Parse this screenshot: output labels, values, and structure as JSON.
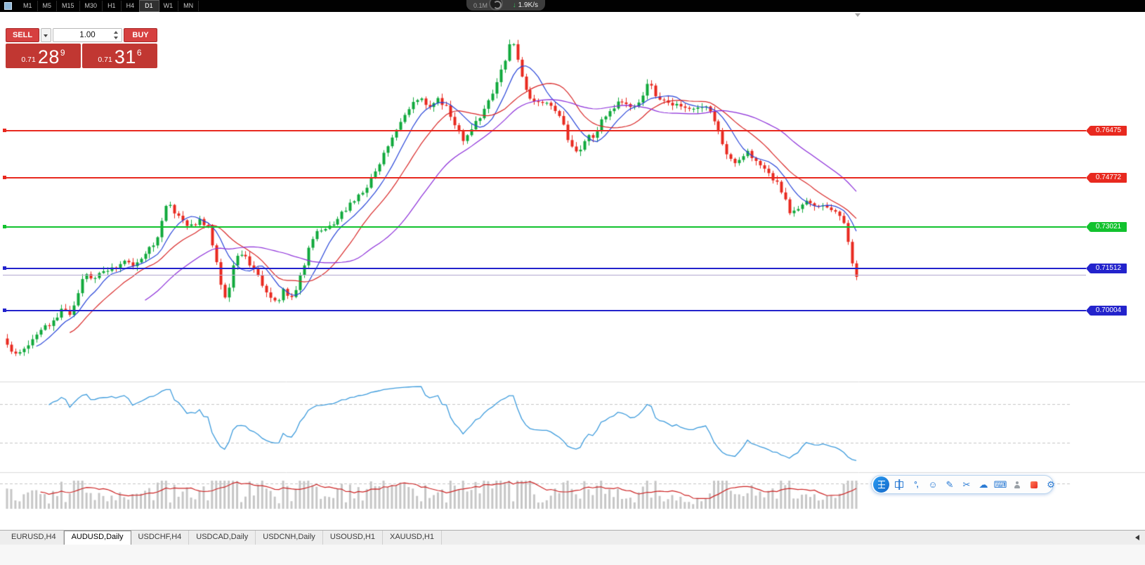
{
  "toolbar": {
    "timeframes": [
      "M1",
      "M5",
      "M15",
      "M30",
      "H1",
      "H4",
      "D1",
      "W1",
      "MN"
    ],
    "selected": "D1"
  },
  "overlay": {
    "upload": "0.1M",
    "arrow": "↓",
    "download": "1.9K/s"
  },
  "trade_panel": {
    "sell_label": "SELL",
    "buy_label": "BUY",
    "volume": "1.00",
    "bid": {
      "small": "0.71",
      "big": "28",
      "sup": "9"
    },
    "ask": {
      "small": "0.71",
      "big": "31",
      "sup": "6"
    }
  },
  "levels": [
    {
      "price": 0.76475,
      "label": "0.76475",
      "color": "#e8291f"
    },
    {
      "price": 0.74772,
      "label": "0.74772",
      "color": "#e8291f"
    },
    {
      "price": 0.73021,
      "label": "0.73021",
      "color": "#12c22e"
    },
    {
      "price": 0.71512,
      "label": "0.71512",
      "color": "#2323cc"
    },
    {
      "price": 0.70004,
      "label": "0.70004",
      "color": "#2323cc"
    }
  ],
  "current_price": {
    "value": 0.71289,
    "line_color": "#b3a8cf"
  },
  "tabs": [
    {
      "label": "EURUSD,H4",
      "active": false
    },
    {
      "label": "AUDUSD,Daily",
      "active": true
    },
    {
      "label": "USDCHF,H4",
      "active": false
    },
    {
      "label": "USDCAD,Daily",
      "active": false
    },
    {
      "label": "USDCNH,Daily",
      "active": false
    },
    {
      "label": "USOUSD,H1",
      "active": false
    },
    {
      "label": "XAUUSD,H1",
      "active": false
    }
  ],
  "ime_toolbar": {
    "icons": [
      {
        "name": "chinese-mode",
        "css": "zhong"
      },
      {
        "name": "punctuation",
        "glyph": "°,",
        "cls": "punct"
      },
      {
        "name": "emoji",
        "glyph": "☺"
      },
      {
        "name": "handwriting-pen",
        "glyph": "✎"
      },
      {
        "name": "screenshot-scissors",
        "glyph": "✂"
      },
      {
        "name": "cloud-sync",
        "glyph": "☁"
      },
      {
        "name": "virtual-keyboard",
        "glyph": "⌨"
      },
      {
        "name": "account-person",
        "css": "person"
      },
      {
        "name": "skin-gift",
        "css": "skin"
      },
      {
        "name": "settings-gear",
        "glyph": "⚙"
      }
    ]
  },
  "chart_data": {
    "type": "candlestick",
    "symbol": "AUDUSD",
    "timeframe": "Daily",
    "candle_count": 204,
    "up_color": "#10a93c",
    "down_color": "#e8291f",
    "price_axis": {
      "visible_levels": [
        0.76475,
        0.74772,
        0.73021,
        0.71512,
        0.70004
      ],
      "approx_range": [
        0.6825,
        0.804
      ]
    },
    "moving_averages": [
      {
        "period": 8,
        "color": "#2643d8"
      },
      {
        "period": 16,
        "color": "#d82626"
      },
      {
        "period": 34,
        "color": "#8a2bd8"
      }
    ],
    "indicators": [
      {
        "pane": "middle",
        "type": "line-oscillator",
        "period": 10,
        "color": "#3d9bdc",
        "grid": "dashed"
      },
      {
        "pane": "bottom",
        "type": "volume-histogram",
        "bar_color": "#c6c6c6",
        "signal_color": "#cc2222"
      }
    ],
    "price_path": [
      [
        0,
        0.69
      ],
      [
        2,
        0.6845
      ],
      [
        5,
        0.687
      ],
      [
        8,
        0.692
      ],
      [
        11,
        0.6955
      ],
      [
        14,
        0.701
      ],
      [
        16,
        0.6985
      ],
      [
        19,
        0.7135
      ],
      [
        21,
        0.7115
      ],
      [
        24,
        0.7155
      ],
      [
        26,
        0.7145
      ],
      [
        29,
        0.7185
      ],
      [
        31,
        0.716
      ],
      [
        34,
        0.722
      ],
      [
        36,
        0.7235
      ],
      [
        39,
        0.739
      ],
      [
        41,
        0.7345
      ],
      [
        44,
        0.731
      ],
      [
        47,
        0.7325
      ],
      [
        49,
        0.729
      ],
      [
        52,
        0.706
      ],
      [
        53,
        0.7035
      ],
      [
        55,
        0.7185
      ],
      [
        57,
        0.7215
      ],
      [
        60,
        0.7135
      ],
      [
        63,
        0.7065
      ],
      [
        65,
        0.7028
      ],
      [
        67,
        0.709
      ],
      [
        68,
        0.7018
      ],
      [
        71,
        0.7135
      ],
      [
        73,
        0.7255
      ],
      [
        75,
        0.7285
      ],
      [
        78,
        0.73
      ],
      [
        80,
        0.735
      ],
      [
        83,
        0.7385
      ],
      [
        85,
        0.742
      ],
      [
        88,
        0.748
      ],
      [
        90,
        0.754
      ],
      [
        92,
        0.7613
      ],
      [
        95,
        0.7687
      ],
      [
        97,
        0.7736
      ],
      [
        99,
        0.7773
      ],
      [
        101,
        0.7736
      ],
      [
        104,
        0.776
      ],
      [
        106,
        0.7724
      ],
      [
        108,
        0.765
      ],
      [
        110,
        0.7613
      ],
      [
        113,
        0.7687
      ],
      [
        115,
        0.7736
      ],
      [
        116,
        0.776
      ],
      [
        118,
        0.7835
      ],
      [
        120,
        0.792
      ],
      [
        121,
        0.7995
      ],
      [
        123,
        0.7873
      ],
      [
        125,
        0.7786
      ],
      [
        127,
        0.7736
      ],
      [
        129,
        0.776
      ],
      [
        131,
        0.7736
      ],
      [
        133,
        0.77
      ],
      [
        135,
        0.76
      ],
      [
        137,
        0.7564
      ],
      [
        139,
        0.7626
      ],
      [
        141,
        0.7613
      ],
      [
        143,
        0.77
      ],
      [
        146,
        0.7736
      ],
      [
        148,
        0.776
      ],
      [
        150,
        0.7724
      ],
      [
        152,
        0.7748
      ],
      [
        154,
        0.7822
      ],
      [
        156,
        0.776
      ],
      [
        158,
        0.7748
      ],
      [
        160,
        0.7736
      ],
      [
        165,
        0.7724
      ],
      [
        167,
        0.7736
      ],
      [
        169,
        0.7712
      ],
      [
        171,
        0.7626
      ],
      [
        173,
        0.7552
      ],
      [
        175,
        0.7515
      ],
      [
        177,
        0.7576
      ],
      [
        179,
        0.7552
      ],
      [
        181,
        0.7515
      ],
      [
        183,
        0.7478
      ],
      [
        185,
        0.7453
      ],
      [
        186,
        0.7416
      ],
      [
        188,
        0.7343
      ],
      [
        190,
        0.7379
      ],
      [
        192,
        0.7392
      ],
      [
        194,
        0.7379
      ],
      [
        197,
        0.7367
      ],
      [
        199,
        0.7354
      ],
      [
        200,
        0.733
      ],
      [
        201,
        0.7292
      ],
      [
        202,
        0.7218
      ],
      [
        203,
        0.7129
      ]
    ],
    "note": "price_path is an approximate reconstruction of candle closes read from the screenshot"
  }
}
